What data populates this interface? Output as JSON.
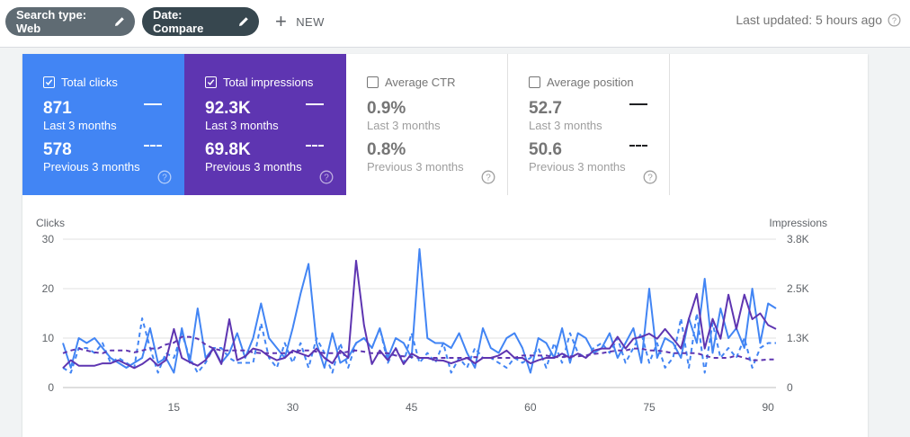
{
  "toolbar": {
    "search_type_label": "Search type: Web",
    "date_label": "Date: Compare",
    "new_label": "NEW",
    "last_updated": "Last updated: 5 hours ago"
  },
  "metrics": {
    "clicks": {
      "title": "Total clicks",
      "value_current": "871",
      "label_current": "Last 3 months",
      "value_previous": "578",
      "label_previous": "Previous 3 months",
      "checked": true,
      "color": "#4285f4"
    },
    "impressions": {
      "title": "Total impressions",
      "value_current": "92.3K",
      "label_current": "Last 3 months",
      "value_previous": "69.8K",
      "label_previous": "Previous 3 months",
      "checked": true,
      "color": "#5e35b1"
    },
    "ctr": {
      "title": "Average CTR",
      "value_current": "0.9%",
      "label_current": "Last 3 months",
      "value_previous": "0.8%",
      "label_previous": "Previous 3 months",
      "checked": false
    },
    "position": {
      "title": "Average position",
      "value_current": "52.7",
      "label_current": "Last 3 months",
      "value_previous": "50.6",
      "label_previous": "Previous 3 months",
      "checked": false
    }
  },
  "chart_data": {
    "type": "line",
    "ylabel_left": "Clicks",
    "ylabel_right": "Impressions",
    "ylim_left": [
      0,
      30
    ],
    "ylim_right": [
      0,
      3800
    ],
    "yticks_left": [
      "0",
      "10",
      "20",
      "30"
    ],
    "yticks_right": [
      "0",
      "1.3K",
      "2.5K",
      "3.8K"
    ],
    "ytick_values_right": [
      0,
      1266.7,
      2533.3,
      3800
    ],
    "xlim": [
      1,
      91
    ],
    "xticks": [
      15,
      30,
      45,
      60,
      75,
      90
    ],
    "grid": true,
    "series": [
      {
        "metric": "clicks",
        "period": "Last 3 months",
        "color": "#4285f4",
        "dashed": false,
        "axis": "left",
        "x": [
          1,
          2,
          3,
          4,
          5,
          6,
          7,
          8,
          9,
          10,
          11,
          12,
          13,
          14,
          15,
          16,
          17,
          18,
          19,
          20,
          21,
          22,
          23,
          24,
          25,
          26,
          27,
          28,
          29,
          30,
          31,
          32,
          33,
          34,
          35,
          36,
          37,
          38,
          39,
          40,
          41,
          42,
          43,
          44,
          45,
          46,
          47,
          48,
          49,
          50,
          51,
          52,
          53,
          54,
          55,
          56,
          57,
          58,
          59,
          60,
          61,
          62,
          63,
          64,
          65,
          66,
          67,
          68,
          69,
          70,
          71,
          72,
          73,
          74,
          75,
          76,
          77,
          78,
          79,
          80,
          81,
          82,
          83,
          84,
          85,
          86,
          87,
          88,
          89,
          90,
          91
        ],
        "values": [
          9,
          4,
          10,
          9,
          10,
          8,
          6,
          5,
          4,
          5,
          6,
          12,
          5,
          6,
          3,
          12,
          5,
          16,
          6,
          8,
          5,
          7,
          11,
          6,
          10,
          17,
          10,
          8,
          6,
          12,
          19,
          25,
          9,
          4,
          11,
          5,
          6,
          9,
          10,
          8,
          12,
          6,
          10,
          9,
          6,
          28,
          10,
          9,
          9,
          8,
          11,
          7,
          4,
          12,
          8,
          7,
          10,
          11,
          8,
          3,
          10,
          9,
          6,
          12,
          5,
          11,
          10,
          7,
          8,
          11,
          6,
          9,
          12,
          5,
          20,
          6,
          10,
          9,
          6,
          14,
          9,
          22,
          7,
          16,
          10,
          12,
          8,
          20,
          9,
          17,
          16
        ]
      },
      {
        "metric": "clicks",
        "period": "Previous 3 months",
        "color": "#4285f4",
        "dashed": true,
        "axis": "left",
        "x": [
          1,
          2,
          3,
          4,
          5,
          6,
          7,
          8,
          9,
          10,
          11,
          12,
          13,
          14,
          15,
          16,
          17,
          18,
          19,
          20,
          21,
          22,
          23,
          24,
          25,
          26,
          27,
          28,
          29,
          30,
          31,
          32,
          33,
          34,
          35,
          36,
          37,
          38,
          39,
          40,
          41,
          42,
          43,
          44,
          45,
          46,
          47,
          48,
          49,
          50,
          51,
          52,
          53,
          54,
          55,
          56,
          57,
          58,
          59,
          60,
          61,
          62,
          63,
          64,
          65,
          66,
          67,
          68,
          69,
          70,
          71,
          72,
          73,
          74,
          75,
          76,
          77,
          78,
          79,
          80,
          81,
          82,
          83,
          84,
          85,
          86,
          87,
          88,
          89,
          90,
          91
        ],
        "values": [
          4,
          3,
          8,
          8,
          7,
          9,
          5,
          6,
          5,
          4,
          14,
          8,
          3,
          7,
          6,
          11,
          6,
          3,
          5,
          8,
          8,
          6,
          5,
          5,
          5,
          13,
          6,
          4,
          9,
          5,
          9,
          4,
          10,
          7,
          3,
          9,
          4,
          9,
          10,
          8,
          12,
          5,
          8,
          5,
          11,
          5,
          7,
          5,
          9,
          3,
          6,
          4,
          8,
          6,
          6,
          5,
          4,
          6,
          5,
          6,
          8,
          4,
          9,
          5,
          11,
          7,
          6,
          8,
          9,
          7,
          10,
          5,
          8,
          11,
          5,
          9,
          4,
          6,
          14,
          4,
          15,
          3,
          13,
          6,
          8,
          6,
          10,
          4,
          8,
          9,
          9
        ]
      },
      {
        "metric": "impressions",
        "period": "Last 3 months",
        "color": "#5e35b1",
        "dashed": false,
        "axis": "right",
        "x": [
          1,
          2,
          3,
          4,
          5,
          6,
          7,
          8,
          9,
          10,
          11,
          12,
          13,
          14,
          15,
          16,
          17,
          18,
          19,
          20,
          21,
          22,
          23,
          24,
          25,
          26,
          27,
          28,
          29,
          30,
          31,
          32,
          33,
          34,
          35,
          36,
          37,
          38,
          39,
          40,
          41,
          42,
          43,
          44,
          45,
          46,
          47,
          48,
          49,
          50,
          51,
          52,
          53,
          54,
          55,
          56,
          57,
          58,
          59,
          60,
          61,
          62,
          63,
          64,
          65,
          66,
          67,
          68,
          69,
          70,
          71,
          72,
          73,
          74,
          75,
          76,
          77,
          78,
          79,
          80,
          81,
          82,
          83,
          84,
          85,
          86,
          87,
          88,
          89,
          90,
          91
        ],
        "values": [
          500,
          700,
          560,
          560,
          560,
          620,
          620,
          700,
          600,
          500,
          600,
          750,
          560,
          700,
          1500,
          760,
          650,
          560,
          700,
          1000,
          600,
          1750,
          700,
          800,
          1000,
          950,
          800,
          700,
          760,
          950,
          870,
          800,
          1000,
          760,
          620,
          950,
          760,
          3250,
          1600,
          600,
          950,
          700,
          1000,
          600,
          870,
          760,
          760,
          700,
          690,
          620,
          690,
          760,
          620,
          760,
          760,
          820,
          950,
          760,
          760,
          620,
          700,
          760,
          760,
          870,
          760,
          870,
          760,
          950,
          1000,
          1000,
          1300,
          1000,
          1250,
          1300,
          1380,
          1250,
          1500,
          1250,
          1000,
          1760,
          2400,
          1000,
          1760,
          1250,
          2380,
          1500,
          2380,
          1750,
          1900,
          1600,
          1500
        ]
      },
      {
        "metric": "impressions",
        "period": "Previous 3 months",
        "color": "#5e35b1",
        "dashed": true,
        "axis": "right",
        "x": [
          1,
          2,
          3,
          4,
          5,
          6,
          7,
          8,
          9,
          10,
          11,
          12,
          13,
          14,
          15,
          16,
          17,
          18,
          19,
          20,
          21,
          22,
          23,
          24,
          25,
          26,
          27,
          28,
          29,
          30,
          31,
          32,
          33,
          34,
          35,
          36,
          37,
          38,
          39,
          40,
          41,
          42,
          43,
          44,
          45,
          46,
          47,
          48,
          49,
          50,
          51,
          52,
          53,
          54,
          55,
          56,
          57,
          58,
          59,
          60,
          61,
          62,
          63,
          64,
          65,
          66,
          67,
          68,
          69,
          70,
          71,
          72,
          73,
          74,
          75,
          76,
          77,
          78,
          79,
          80,
          81,
          82,
          83,
          84,
          85,
          86,
          87,
          88,
          89,
          90,
          91
        ],
        "values": [
          880,
          950,
          1000,
          950,
          900,
          880,
          950,
          950,
          950,
          900,
          950,
          1000,
          1000,
          1100,
          1150,
          1300,
          1300,
          1250,
          1100,
          1000,
          950,
          950,
          950,
          950,
          900,
          880,
          880,
          880,
          880,
          900,
          950,
          950,
          920,
          880,
          880,
          880,
          920,
          950,
          920,
          880,
          880,
          880,
          820,
          800,
          780,
          760,
          760,
          760,
          760,
          760,
          760,
          760,
          780,
          760,
          760,
          760,
          760,
          760,
          820,
          820,
          820,
          820,
          780,
          780,
          800,
          800,
          820,
          860,
          880,
          920,
          950,
          950,
          1000,
          1000,
          950,
          950,
          920,
          880,
          880,
          880,
          880,
          820,
          760,
          760,
          760,
          820,
          760,
          700,
          700,
          720,
          720
        ]
      }
    ]
  }
}
